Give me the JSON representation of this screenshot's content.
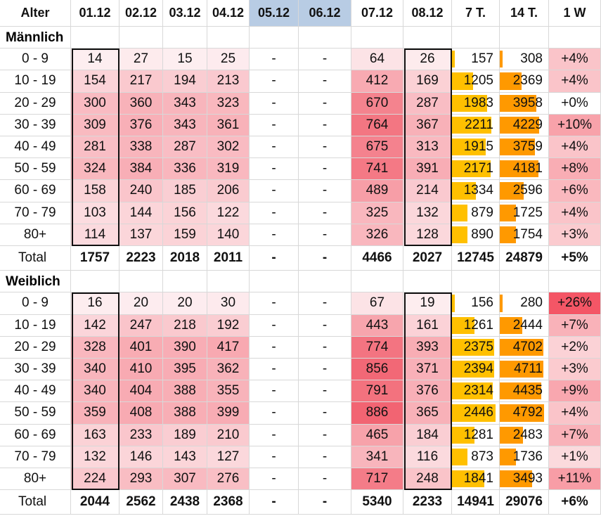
{
  "header": {
    "labels": [
      "Alter",
      "01.12",
      "02.12",
      "03.12",
      "04.12",
      "05.12",
      "06.12",
      "07.12",
      "08.12",
      "7 T.",
      "14 T.",
      "1 W"
    ],
    "blue_cols": [
      5,
      6
    ],
    "blue_color": "#b8cce4"
  },
  "colors": {
    "heat_low": "#fdeef0",
    "heat_high": "#f26472",
    "bar7": "#ffc000",
    "bar14": "#ff9900",
    "neg_low": "#fce4e6",
    "neg_high": "#f45666"
  },
  "sections": [
    {
      "title": "Männlich",
      "max7": 12745,
      "max14": 24879,
      "rows": [
        {
          "label": "0 - 9",
          "cells": [
            "14",
            "27",
            "15",
            "25",
            "-",
            "-",
            "64",
            "26",
            "157",
            "308",
            "+4%"
          ]
        },
        {
          "label": "10 - 19",
          "cells": [
            "154",
            "217",
            "194",
            "213",
            "-",
            "-",
            "412",
            "169",
            "1205",
            "2369",
            "+4%"
          ]
        },
        {
          "label": "20 - 29",
          "cells": [
            "300",
            "360",
            "343",
            "323",
            "-",
            "-",
            "670",
            "287",
            "1983",
            "3958",
            "+0%"
          ]
        },
        {
          "label": "30 - 39",
          "cells": [
            "309",
            "376",
            "343",
            "361",
            "-",
            "-",
            "764",
            "367",
            "2211",
            "4229",
            "+10%"
          ]
        },
        {
          "label": "40 - 49",
          "cells": [
            "281",
            "338",
            "287",
            "302",
            "-",
            "-",
            "675",
            "313",
            "1915",
            "3759",
            "+4%"
          ]
        },
        {
          "label": "50 - 59",
          "cells": [
            "324",
            "384",
            "336",
            "319",
            "-",
            "-",
            "741",
            "391",
            "2171",
            "4181",
            "+8%"
          ]
        },
        {
          "label": "60 - 69",
          "cells": [
            "158",
            "240",
            "185",
            "206",
            "-",
            "-",
            "489",
            "214",
            "1334",
            "2596",
            "+6%"
          ]
        },
        {
          "label": "70 - 79",
          "cells": [
            "103",
            "144",
            "156",
            "122",
            "-",
            "-",
            "325",
            "132",
            "879",
            "1725",
            "+4%"
          ]
        },
        {
          "label": "80+",
          "cells": [
            "114",
            "137",
            "159",
            "140",
            "-",
            "-",
            "326",
            "128",
            "890",
            "1754",
            "+3%"
          ]
        }
      ],
      "total": {
        "label": "Total",
        "cells": [
          "1757",
          "2223",
          "2018",
          "2011",
          "-",
          "-",
          "4466",
          "2027",
          "12745",
          "24879",
          "+5%"
        ]
      }
    },
    {
      "title": "Weiblich",
      "max7": 14941,
      "max14": 29076,
      "rows": [
        {
          "label": "0 - 9",
          "cells": [
            "16",
            "20",
            "20",
            "30",
            "-",
            "-",
            "67",
            "19",
            "156",
            "280",
            "+26%"
          ]
        },
        {
          "label": "10 - 19",
          "cells": [
            "142",
            "247",
            "218",
            "192",
            "-",
            "-",
            "443",
            "161",
            "1261",
            "2444",
            "+7%"
          ]
        },
        {
          "label": "20 - 29",
          "cells": [
            "328",
            "401",
            "390",
            "417",
            "-",
            "-",
            "774",
            "393",
            "2375",
            "4702",
            "+2%"
          ]
        },
        {
          "label": "30 - 39",
          "cells": [
            "340",
            "410",
            "395",
            "362",
            "-",
            "-",
            "856",
            "371",
            "2394",
            "4711",
            "+3%"
          ]
        },
        {
          "label": "40 - 49",
          "cells": [
            "340",
            "404",
            "388",
            "355",
            "-",
            "-",
            "791",
            "376",
            "2314",
            "4435",
            "+9%"
          ]
        },
        {
          "label": "50 - 59",
          "cells": [
            "359",
            "408",
            "388",
            "399",
            "-",
            "-",
            "886",
            "365",
            "2446",
            "4792",
            "+4%"
          ]
        },
        {
          "label": "60 - 69",
          "cells": [
            "163",
            "233",
            "189",
            "210",
            "-",
            "-",
            "465",
            "184",
            "1281",
            "2483",
            "+7%"
          ]
        },
        {
          "label": "70 - 79",
          "cells": [
            "132",
            "146",
            "143",
            "127",
            "-",
            "-",
            "341",
            "116",
            "873",
            "1736",
            "+1%"
          ]
        },
        {
          "label": "80+",
          "cells": [
            "224",
            "293",
            "307",
            "276",
            "-",
            "-",
            "717",
            "248",
            "1841",
            "3493",
            "+11%"
          ]
        }
      ],
      "total": {
        "label": "Total",
        "cells": [
          "2044",
          "2562",
          "2438",
          "2368",
          "-",
          "-",
          "5340",
          "2233",
          "14941",
          "29076",
          "+6%"
        ]
      }
    }
  ]
}
